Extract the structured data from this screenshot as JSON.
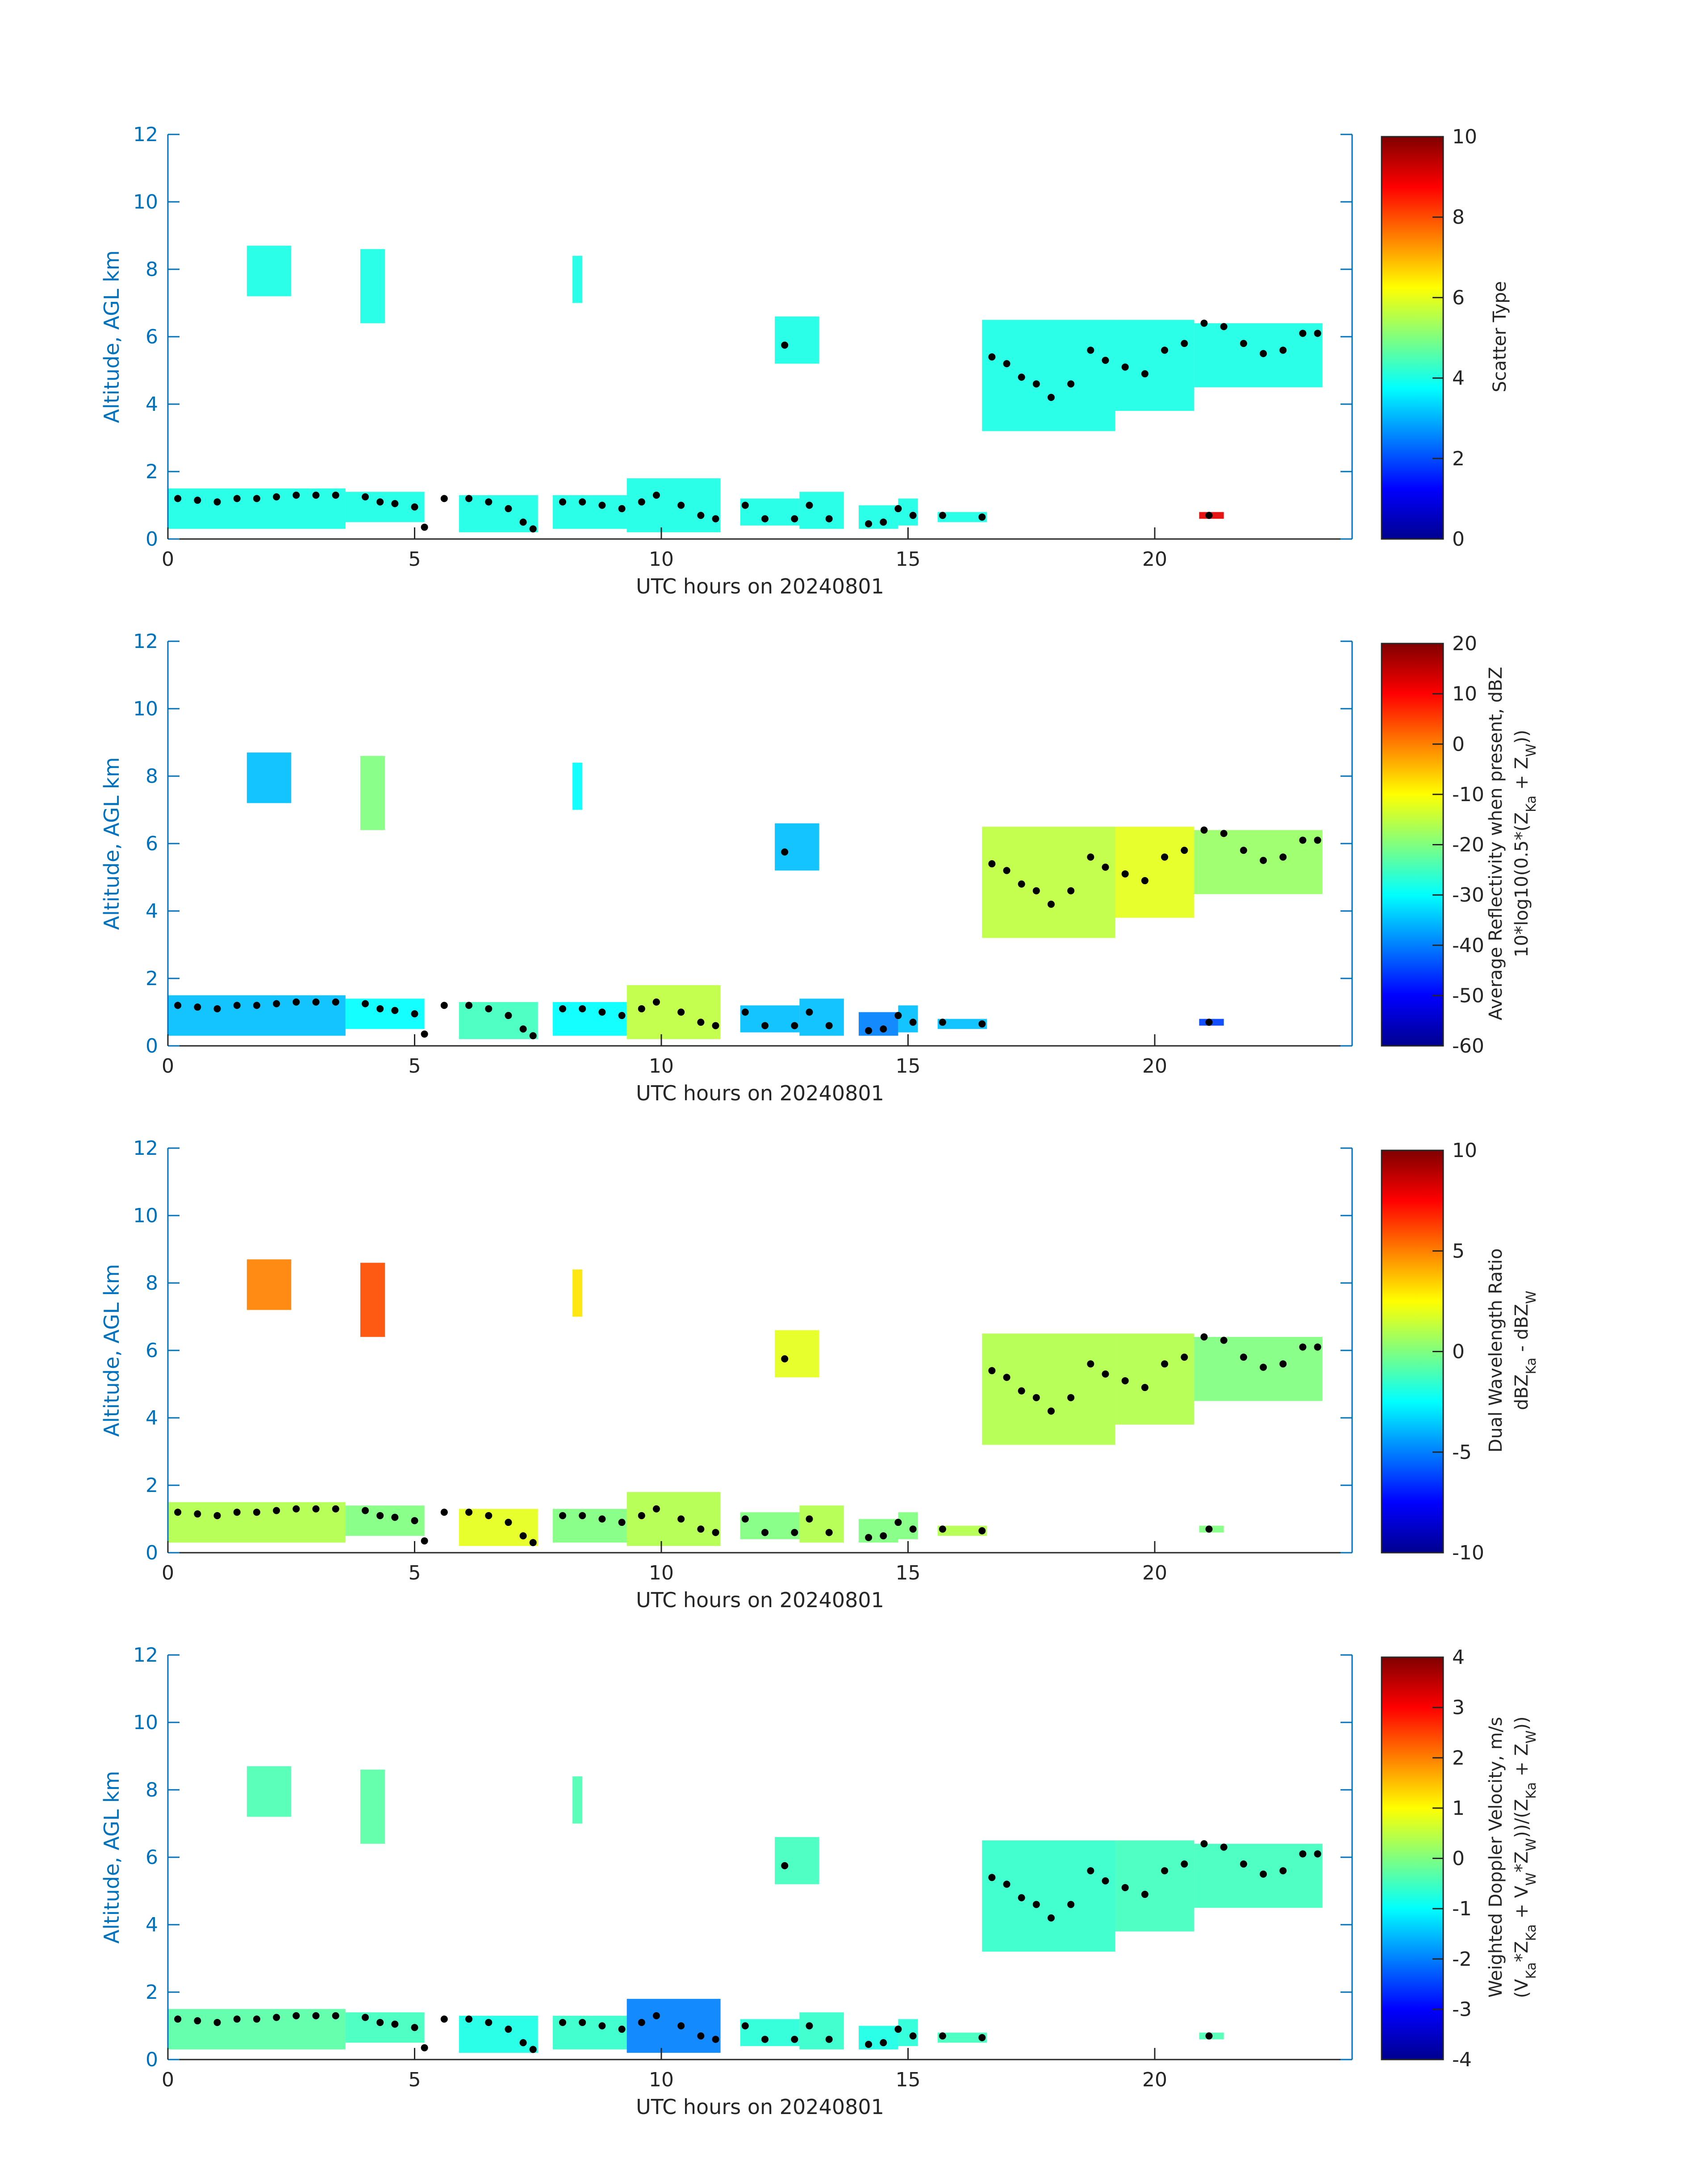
{
  "figure": {
    "axis_color": "#0072BD",
    "dot_color": "#000000"
  },
  "shared": {
    "xlabel": "UTC hours on 20240801",
    "ylabel": "Altitude, AGL km",
    "xlim": [
      0,
      24
    ],
    "ylim": [
      0,
      12
    ],
    "xticks": [
      0,
      5,
      10,
      15,
      20
    ],
    "yticks": [
      0,
      2,
      4,
      6,
      8,
      10,
      12
    ],
    "cloud_regions_hours_km": [
      [
        0.0,
        3.6,
        0.3,
        1.5
      ],
      [
        3.6,
        5.2,
        0.5,
        1.4
      ],
      [
        5.9,
        7.5,
        0.2,
        1.3
      ],
      [
        7.8,
        9.3,
        0.3,
        1.3
      ],
      [
        9.3,
        11.2,
        0.2,
        1.8
      ],
      [
        11.6,
        12.8,
        0.4,
        1.2
      ],
      [
        12.8,
        13.7,
        0.3,
        1.4
      ],
      [
        14.0,
        14.8,
        0.3,
        1.0
      ],
      [
        14.8,
        15.2,
        0.4,
        1.2
      ],
      [
        15.6,
        16.6,
        0.5,
        0.8
      ],
      [
        1.6,
        2.5,
        7.2,
        8.7
      ],
      [
        3.9,
        4.4,
        6.4,
        8.6
      ],
      [
        8.2,
        8.4,
        7.0,
        8.4
      ],
      [
        12.3,
        13.2,
        5.2,
        6.6
      ],
      [
        16.5,
        19.2,
        3.2,
        6.5
      ],
      [
        19.2,
        20.8,
        3.8,
        6.5
      ],
      [
        20.8,
        23.4,
        4.5,
        6.4
      ],
      [
        20.9,
        21.4,
        0.6,
        0.8
      ]
    ],
    "cloud_base_points_hours_km": [
      [
        0.2,
        1.2
      ],
      [
        0.6,
        1.15
      ],
      [
        1.0,
        1.1
      ],
      [
        1.4,
        1.2
      ],
      [
        1.8,
        1.2
      ],
      [
        2.2,
        1.25
      ],
      [
        2.6,
        1.3
      ],
      [
        3.0,
        1.3
      ],
      [
        3.4,
        1.3
      ],
      [
        4.0,
        1.25
      ],
      [
        4.3,
        1.1
      ],
      [
        4.6,
        1.05
      ],
      [
        5.0,
        0.95
      ],
      [
        5.2,
        0.35
      ],
      [
        5.6,
        1.2
      ],
      [
        6.1,
        1.2
      ],
      [
        6.5,
        1.1
      ],
      [
        6.9,
        0.9
      ],
      [
        7.2,
        0.5
      ],
      [
        7.4,
        0.3
      ],
      [
        8.0,
        1.1
      ],
      [
        8.4,
        1.1
      ],
      [
        8.8,
        1.0
      ],
      [
        9.2,
        0.9
      ],
      [
        9.6,
        1.1
      ],
      [
        9.9,
        1.3
      ],
      [
        10.4,
        1.0
      ],
      [
        10.8,
        0.7
      ],
      [
        11.1,
        0.6
      ],
      [
        11.7,
        1.0
      ],
      [
        12.1,
        0.6
      ],
      [
        12.5,
        5.75
      ],
      [
        12.7,
        0.6
      ],
      [
        13.0,
        1.0
      ],
      [
        13.4,
        0.6
      ],
      [
        14.2,
        0.45
      ],
      [
        14.5,
        0.5
      ],
      [
        14.8,
        0.9
      ],
      [
        15.1,
        0.7
      ],
      [
        15.7,
        0.7
      ],
      [
        16.5,
        0.65
      ],
      [
        16.7,
        5.4
      ],
      [
        17.0,
        5.2
      ],
      [
        17.3,
        4.8
      ],
      [
        17.6,
        4.6
      ],
      [
        17.9,
        4.2
      ],
      [
        18.3,
        4.6
      ],
      [
        18.7,
        5.6
      ],
      [
        19.0,
        5.3
      ],
      [
        19.4,
        5.1
      ],
      [
        19.8,
        4.9
      ],
      [
        20.2,
        5.6
      ],
      [
        20.6,
        5.8
      ],
      [
        21.0,
        6.4
      ],
      [
        21.4,
        6.3
      ],
      [
        21.8,
        5.8
      ],
      [
        22.2,
        5.5
      ],
      [
        22.6,
        5.6
      ],
      [
        23.0,
        6.1
      ],
      [
        23.3,
        6.1
      ],
      [
        21.1,
        0.7
      ]
    ]
  },
  "chart_data": [
    {
      "type": "heatmap",
      "colormap": "jet",
      "clim": [
        0,
        10
      ],
      "cbar_ticks": [
        0,
        2,
        4,
        6,
        8,
        10
      ],
      "cbar_label": [
        [
          {
            "t": "Scatter Type"
          }
        ]
      ],
      "region_values": [
        4,
        4,
        4,
        4,
        4,
        4,
        4,
        4,
        4,
        4,
        4,
        4,
        4,
        4,
        4,
        4,
        4,
        9
      ]
    },
    {
      "type": "heatmap",
      "colormap": "jet",
      "clim": [
        -60,
        20
      ],
      "cbar_ticks": [
        -60,
        -50,
        -40,
        -30,
        -20,
        -10,
        0,
        10,
        20
      ],
      "cbar_label": [
        [
          {
            "t": "Average Reflectivity when present, dBZ"
          }
        ],
        [
          {
            "t": "10*log10(0.5*(Z"
          },
          {
            "t": "Ka",
            "sub": true
          },
          {
            "t": " + Z"
          },
          {
            "t": "W",
            "sub": true
          },
          {
            "t": "))"
          }
        ]
      ],
      "region_values": [
        -35,
        -30,
        -25,
        -30,
        -15,
        -35,
        -35,
        -40,
        -35,
        -35,
        -35,
        -20,
        -30,
        -35,
        -15,
        -12,
        -18,
        -45
      ]
    },
    {
      "type": "heatmap",
      "colormap": "jet",
      "clim": [
        -10,
        10
      ],
      "cbar_ticks": [
        -10,
        -5,
        0,
        5,
        10
      ],
      "cbar_label": [
        [
          {
            "t": "Dual Wavelength Ratio"
          }
        ],
        [
          {
            "t": "dBZ"
          },
          {
            "t": "Ka",
            "sub": true
          },
          {
            "t": " - dBZ"
          },
          {
            "t": "W",
            "sub": true
          }
        ]
      ],
      "region_values": [
        1,
        0,
        2,
        0,
        1,
        0,
        1,
        0,
        0,
        1,
        5,
        6,
        3,
        2,
        1,
        1,
        0,
        0
      ]
    },
    {
      "type": "heatmap",
      "colormap": "jet",
      "clim": [
        -4,
        4
      ],
      "cbar_ticks": [
        -4,
        -3,
        -2,
        -1,
        0,
        1,
        2,
        3,
        4
      ],
      "cbar_label": [
        [
          {
            "t": "Weighted Doppler Velocity, m/s"
          }
        ],
        [
          {
            "t": "(V"
          },
          {
            "t": "Ka",
            "sub": true
          },
          {
            "t": "*Z"
          },
          {
            "t": "Ka",
            "sub": true
          },
          {
            "t": " + V"
          },
          {
            "t": "W",
            "sub": true
          },
          {
            "t": "*Z"
          },
          {
            "t": "W",
            "sub": true
          },
          {
            "t": "))/(Z"
          },
          {
            "t": "Ka",
            "sub": true
          },
          {
            "t": " + Z"
          },
          {
            "t": "W",
            "sub": true
          },
          {
            "t": "))"
          }
        ]
      ],
      "region_values": [
        -0.3,
        -0.5,
        -0.8,
        -0.6,
        -2,
        -0.7,
        -0.6,
        -0.8,
        -0.7,
        -0.5,
        -0.4,
        -0.3,
        -0.4,
        -0.5,
        -0.6,
        -0.5,
        -0.5,
        -0.4
      ]
    }
  ]
}
